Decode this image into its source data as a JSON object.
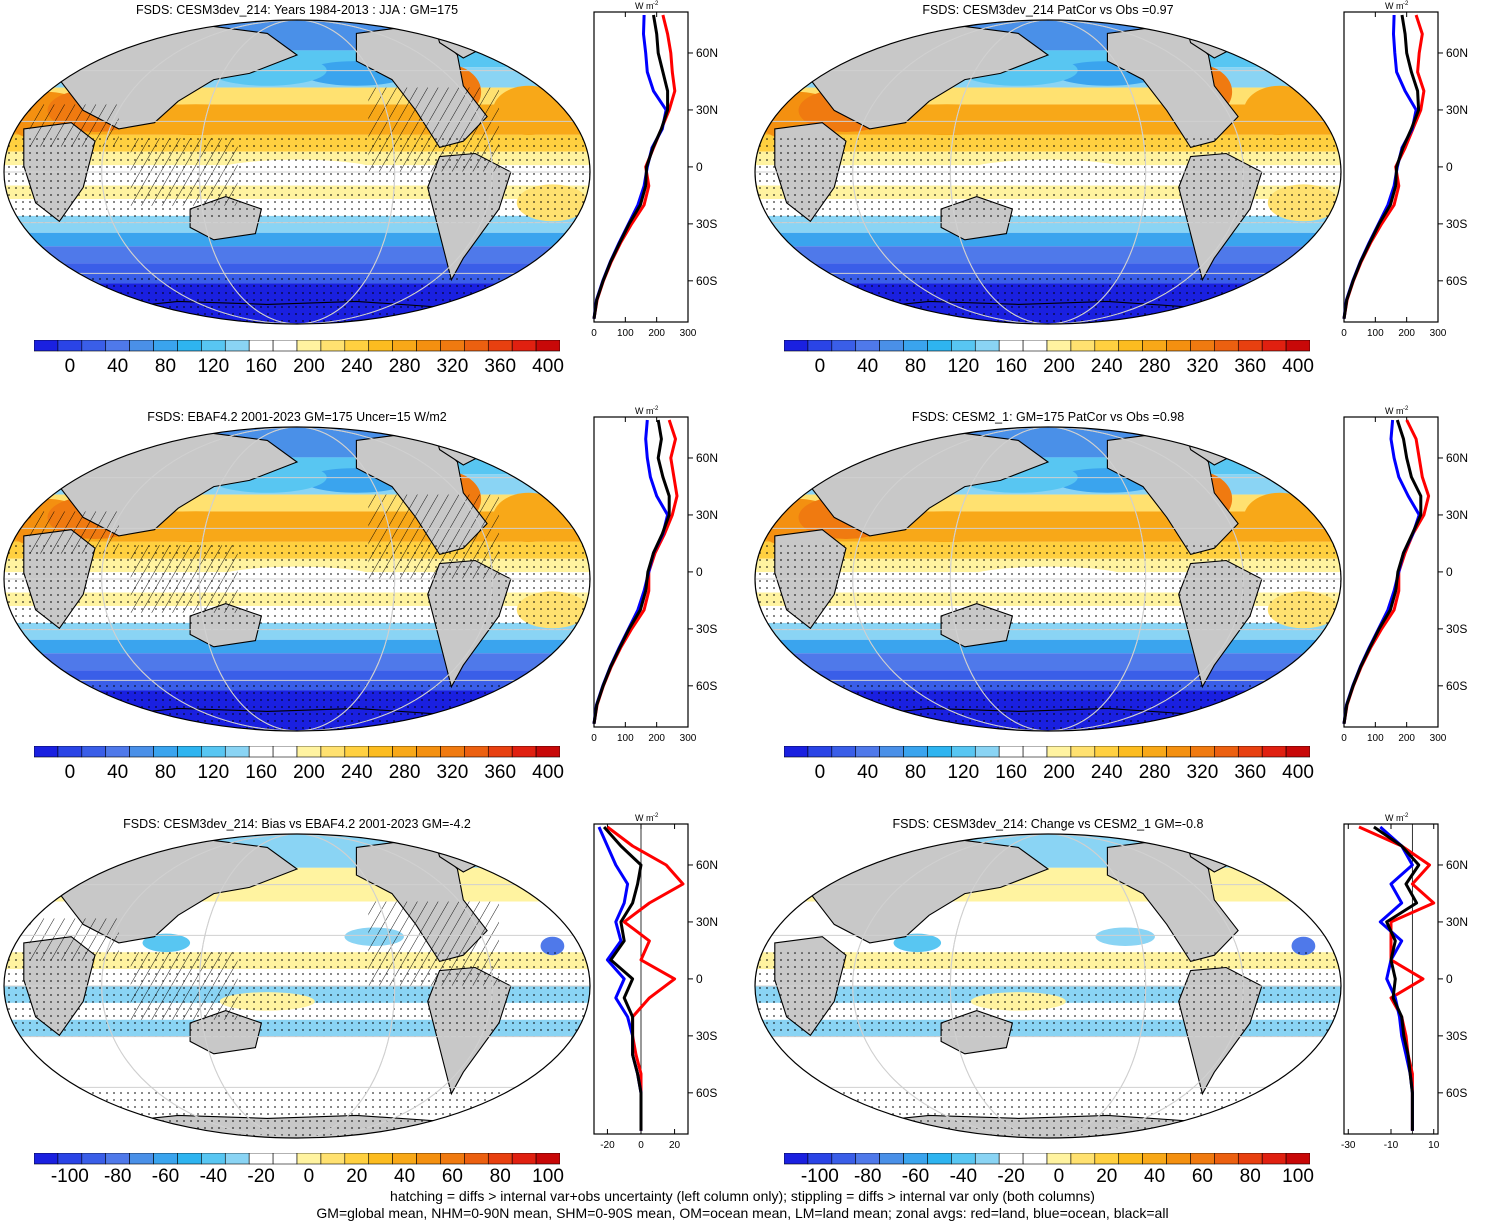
{
  "panels": [
    {
      "id": "p1",
      "title": "FSDS: CESM3dev_214: Years 1984-2013 : JJA : GM=175",
      "kind": "abs",
      "hatch": true,
      "stipple": true
    },
    {
      "id": "p2",
      "title": "FSDS: CESM3dev_214 PatCor vs Obs =0.97",
      "kind": "abs",
      "hatch": false,
      "stipple": true
    },
    {
      "id": "p3",
      "title": "FSDS: EBAF4.2 2001-2023 GM=175 Uncer=15 W/m2",
      "kind": "abs",
      "hatch": true,
      "stipple": true
    },
    {
      "id": "p4",
      "title": "FSDS: CESM2_1: GM=175 PatCor vs Obs =0.98",
      "kind": "abs",
      "hatch": false,
      "stipple": true
    },
    {
      "id": "p5",
      "title": "FSDS: CESM3dev_214: Bias vs EBAF4.2 2001-2023 GM=-4.2",
      "kind": "diff",
      "hatch": true,
      "stipple": true
    },
    {
      "id": "p6",
      "title": "FSDS: CESM3dev_214: Change vs CESM2_1 GM=-0.8",
      "kind": "diff",
      "hatch": false,
      "stipple": true
    }
  ],
  "colorbars": {
    "abs": {
      "labels": [
        "0",
        "40",
        "80",
        "120",
        "160",
        "200",
        "240",
        "280",
        "320",
        "360",
        "400"
      ],
      "colors": [
        "#1a20e0",
        "#2a44e6",
        "#3a5ee8",
        "#4f79ea",
        "#4a90e8",
        "#3aa4ee",
        "#2eb4f0",
        "#58c6f2",
        "#8ad4f4",
        "#ffffff",
        "#ffffff",
        "#fff3a0",
        "#ffe170",
        "#ffd040",
        "#fcbc20",
        "#f8a818",
        "#f49010",
        "#f07a10",
        "#ec6010",
        "#e84010",
        "#e02010",
        "#c80808"
      ]
    },
    "diff": {
      "labels": [
        "-100",
        "-80",
        "-60",
        "-40",
        "-20",
        "0",
        "20",
        "40",
        "60",
        "80",
        "100"
      ],
      "colors": [
        "#1a20e0",
        "#2a44e6",
        "#3a5ee8",
        "#4f79ea",
        "#4a90e8",
        "#3aa4ee",
        "#2eb4f0",
        "#58c6f2",
        "#8ad4f4",
        "#ffffff",
        "#ffffff",
        "#fff3a0",
        "#ffe170",
        "#ffd040",
        "#fcbc20",
        "#f8a818",
        "#f49010",
        "#f07a10",
        "#ec6010",
        "#e84010",
        "#e02010",
        "#c80808"
      ]
    }
  },
  "zonal": {
    "unit": "W m",
    "unit_exp": "-2",
    "lat_labels": [
      "60N",
      "30N",
      "0",
      "30S",
      "60S"
    ],
    "abs_ticks": [
      "0",
      "100",
      "200",
      "300"
    ],
    "bias_ticks": [
      "-20",
      "0",
      "20"
    ],
    "change_ticks": [
      "-30",
      "-10",
      "10"
    ],
    "legend_colors": {
      "land": "#ff0000",
      "ocean": "#0000ff",
      "all": "#000000"
    },
    "chart_data": [
      {
        "panel": "p1",
        "type": "line",
        "xlim": [
          0,
          300
        ],
        "y": [
          80,
          70,
          60,
          50,
          40,
          30,
          20,
          10,
          0,
          -10,
          -20,
          -30,
          -40,
          -50,
          -60,
          -70,
          -80
        ],
        "series": [
          {
            "values": [
              220,
              235,
              245,
              250,
              258,
              240,
              215,
              190,
              165,
              175,
              160,
              120,
              85,
              55,
              30,
              10,
              0
            ]
          },
          {
            "values": [
              160,
              158,
              165,
              170,
              190,
              230,
              218,
              185,
              170,
              160,
              140,
              110,
              80,
              52,
              28,
              8,
              0
            ]
          },
          {
            "values": [
              190,
              200,
              205,
              220,
              235,
              235,
              215,
              188,
              168,
              165,
              148,
              112,
              82,
              53,
              29,
              9,
              0
            ]
          }
        ]
      },
      {
        "panel": "p2",
        "type": "line",
        "xlim": [
          0,
          300
        ],
        "y": [
          80,
          70,
          60,
          50,
          40,
          30,
          20,
          10,
          0,
          -10,
          -20,
          -30,
          -40,
          -50,
          -60,
          -70,
          -80
        ],
        "series": [
          {
            "values": [
              230,
              250,
              240,
              235,
              255,
              245,
              220,
              195,
              165,
              175,
              160,
              120,
              85,
              55,
              30,
              10,
              0
            ]
          },
          {
            "values": [
              160,
              158,
              162,
              168,
              195,
              230,
              218,
              185,
              170,
              160,
              140,
              110,
              80,
              52,
              28,
              8,
              0
            ]
          },
          {
            "values": [
              185,
              195,
              200,
              215,
              235,
              238,
              215,
              188,
              168,
              165,
              148,
              112,
              82,
              53,
              29,
              9,
              0
            ]
          }
        ]
      },
      {
        "panel": "p3",
        "type": "line",
        "xlim": [
          0,
          300
        ],
        "y": [
          80,
          70,
          60,
          50,
          40,
          30,
          20,
          10,
          0,
          -10,
          -20,
          -30,
          -40,
          -50,
          -60,
          -70,
          -80
        ],
        "series": [
          {
            "values": [
              240,
              260,
              245,
              255,
              265,
              250,
              225,
              195,
              175,
              175,
              160,
              120,
              85,
              55,
              30,
              10,
              0
            ]
          },
          {
            "values": [
              170,
              165,
              170,
              180,
              200,
              235,
              220,
              190,
              175,
              160,
              140,
              110,
              80,
              52,
              28,
              8,
              0
            ]
          },
          {
            "values": [
              205,
              215,
              205,
              220,
              240,
              240,
              218,
              190,
              172,
              165,
              148,
              112,
              82,
              53,
              29,
              9,
              0
            ]
          }
        ]
      },
      {
        "panel": "p4",
        "type": "line",
        "xlim": [
          0,
          300
        ],
        "y": [
          80,
          70,
          60,
          50,
          40,
          30,
          20,
          10,
          0,
          -10,
          -20,
          -30,
          -40,
          -50,
          -60,
          -70,
          -80
        ],
        "series": [
          {
            "values": [
              200,
              230,
              240,
              250,
              270,
              255,
              220,
              195,
              175,
              175,
              160,
              120,
              85,
              55,
              30,
              10,
              0
            ]
          },
          {
            "values": [
              155,
              150,
              160,
              175,
              205,
              240,
              220,
              190,
              175,
              160,
              140,
              110,
              80,
              52,
              28,
              8,
              0
            ]
          },
          {
            "values": [
              170,
              190,
              200,
              215,
              245,
              245,
              218,
              190,
              172,
              165,
              148,
              112,
              82,
              53,
              29,
              9,
              0
            ]
          }
        ]
      },
      {
        "panel": "p5",
        "type": "line",
        "xlim": [
          -28,
          28
        ],
        "y": [
          80,
          70,
          60,
          50,
          40,
          30,
          20,
          10,
          0,
          -10,
          -20,
          -30,
          -40,
          -50,
          -60,
          -70,
          -80
        ],
        "series": [
          {
            "values": [
              -20,
              -5,
              15,
              25,
              5,
              -10,
              5,
              0,
              20,
              5,
              -5,
              -5,
              -3,
              0,
              0,
              0,
              0
            ]
          },
          {
            "values": [
              -25,
              -20,
              -15,
              -8,
              -10,
              -15,
              -12,
              -20,
              -10,
              -15,
              -8,
              -5,
              -5,
              -2,
              0,
              0,
              0
            ]
          },
          {
            "values": [
              -22,
              -12,
              0,
              -2,
              -5,
              -12,
              -10,
              -18,
              -5,
              -10,
              -5,
              -5,
              -5,
              -2,
              0,
              0,
              0
            ]
          }
        ]
      },
      {
        "panel": "p6",
        "type": "line",
        "xlim": [
          -32,
          12
        ],
        "y": [
          80,
          70,
          60,
          50,
          40,
          30,
          20,
          10,
          0,
          -10,
          -20,
          -30,
          -40,
          -50,
          -60,
          -70,
          -80
        ],
        "series": [
          {
            "values": [
              -25,
              -5,
              8,
              0,
              10,
              -10,
              -10,
              -10,
              5,
              -10,
              -5,
              -3,
              -2,
              0,
              0,
              0,
              0
            ]
          },
          {
            "values": [
              -15,
              -5,
              0,
              -10,
              -5,
              -15,
              -5,
              -10,
              -12,
              -8,
              -6,
              -5,
              -3,
              -1,
              0,
              0,
              0
            ]
          },
          {
            "values": [
              -18,
              -5,
              3,
              -3,
              2,
              -12,
              -8,
              -10,
              -8,
              -9,
              -5,
              -4,
              -2,
              -1,
              0,
              0,
              0
            ]
          }
        ]
      }
    ]
  },
  "footer": {
    "line1": "hatching = diffs > internal var+obs uncertainty (left column only); stippling = diffs > internal var only (both columns)",
    "line2": "GM=global mean, NHM=0-90N mean, SHM=0-90S mean, OM=ocean mean, LM=land mean; zonal avgs: red=land, blue=ocean, black=all"
  }
}
